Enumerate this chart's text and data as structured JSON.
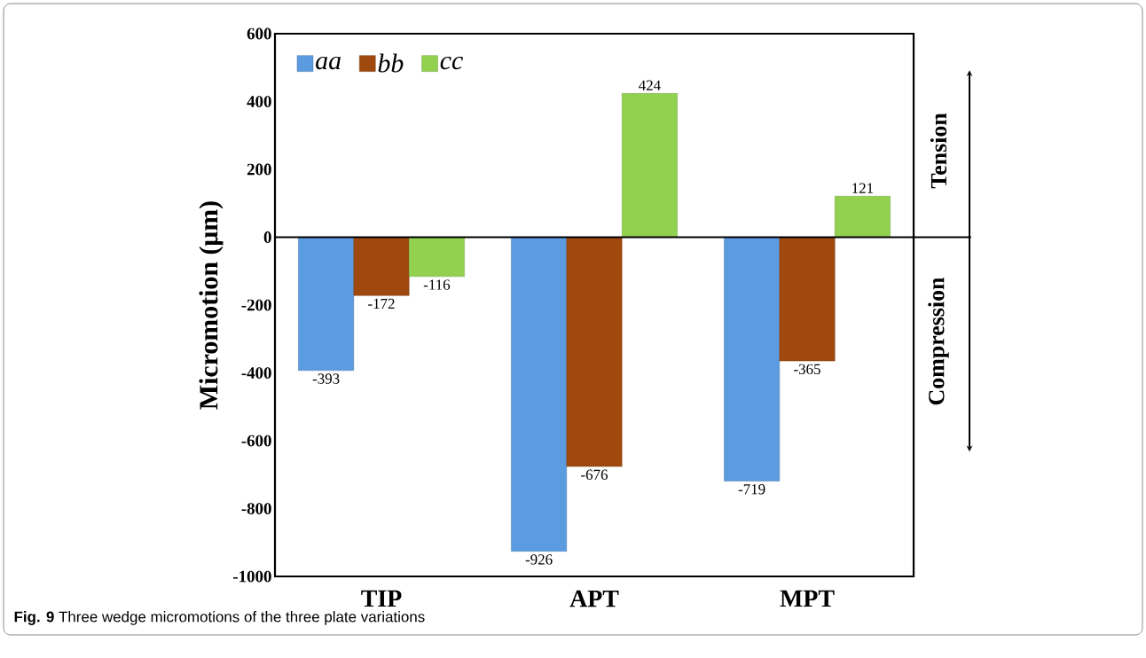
{
  "chart_data": {
    "type": "bar",
    "ylabel": "Micromotion (μm)",
    "categories": [
      "TIP",
      "APT",
      "MPT"
    ],
    "series": [
      {
        "name": "aa",
        "color": "#5b9be0",
        "values": [
          -393,
          -926,
          -719
        ],
        "value_labels": [
          "-393",
          "-926",
          "-719"
        ]
      },
      {
        "name": "bb",
        "color": "#a0490f",
        "values": [
          -172,
          -676,
          -365
        ],
        "value_labels": [
          "-172",
          "-676",
          "-365"
        ]
      },
      {
        "name": "cc",
        "color": "#92d050",
        "values": [
          -116,
          424,
          121
        ],
        "value_labels": [
          "-116",
          "424",
          "121"
        ]
      }
    ],
    "ylim": [
      -1000,
      600
    ],
    "yticks": [
      -1000,
      -800,
      -600,
      -400,
      -200,
      0,
      200,
      400,
      600
    ],
    "legend": "top left",
    "annotations": [
      "Tension",
      "Compression",
      "**Fig. 9** Three wedge micromotions of the three plate variations"
    ]
  }
}
